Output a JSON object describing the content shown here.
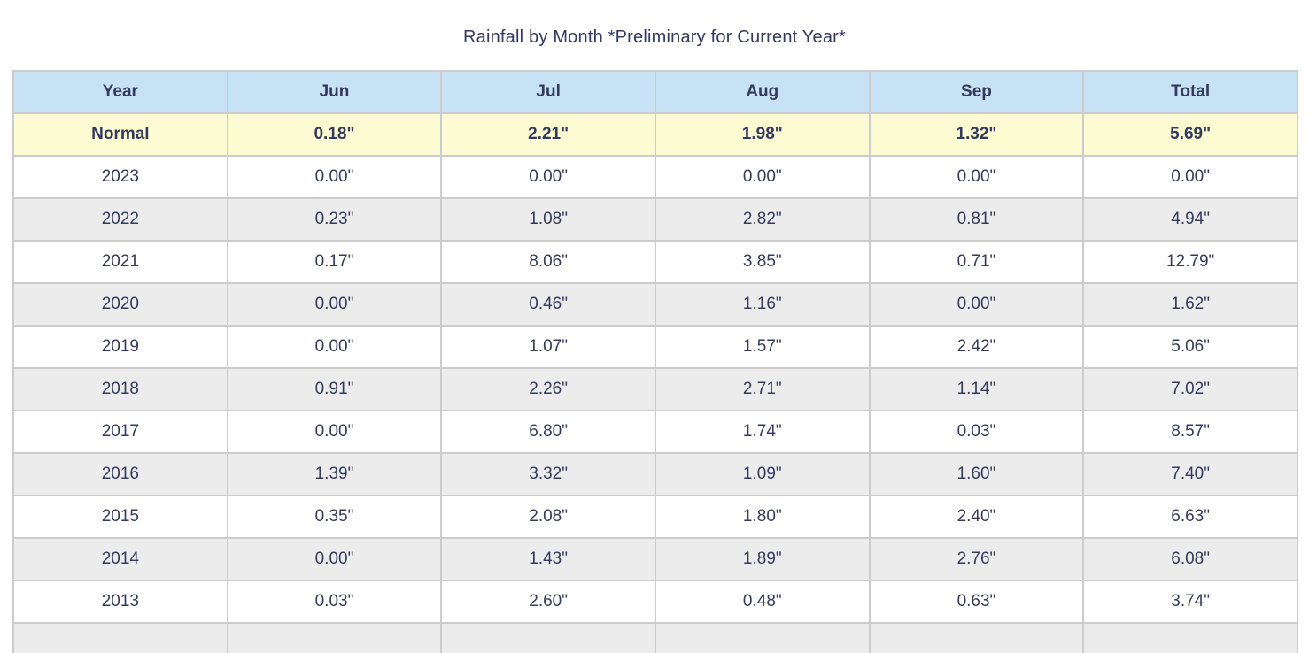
{
  "title": "Rainfall by Month *Preliminary for Current Year*",
  "colors": {
    "header_bg": "#c6e2f4",
    "normal_row_bg": "#fcfbd2",
    "stripe_row_bg": "#ececec",
    "white_row_bg": "#ffffff",
    "border": "#cccccc",
    "text": "#333a5d"
  },
  "table": {
    "columns": [
      "Year",
      "Jun",
      "Jul",
      "Aug",
      "Sep",
      "Total"
    ],
    "rows": [
      {
        "kind": "normal",
        "cells": [
          "Normal",
          "0.18\"",
          "2.21\"",
          "1.98\"",
          "1.32\"",
          "5.69\""
        ]
      },
      {
        "kind": "year",
        "cells": [
          "2023",
          "0.00\"",
          "0.00\"",
          "0.00\"",
          "0.00\"",
          "0.00\""
        ]
      },
      {
        "kind": "year",
        "cells": [
          "2022",
          "0.23\"",
          "1.08\"",
          "2.82\"",
          "0.81\"",
          "4.94\""
        ]
      },
      {
        "kind": "year",
        "cells": [
          "2021",
          "0.17\"",
          "8.06\"",
          "3.85\"",
          "0.71\"",
          "12.79\""
        ]
      },
      {
        "kind": "year",
        "cells": [
          "2020",
          "0.00\"",
          "0.46\"",
          "1.16\"",
          "0.00\"",
          "1.62\""
        ]
      },
      {
        "kind": "year",
        "cells": [
          "2019",
          "0.00\"",
          "1.07\"",
          "1.57\"",
          "2.42\"",
          "5.06\""
        ]
      },
      {
        "kind": "year",
        "cells": [
          "2018",
          "0.91\"",
          "2.26\"",
          "2.71\"",
          "1.14\"",
          "7.02\""
        ]
      },
      {
        "kind": "year",
        "cells": [
          "2017",
          "0.00\"",
          "6.80\"",
          "1.74\"",
          "0.03\"",
          "8.57\""
        ]
      },
      {
        "kind": "year",
        "cells": [
          "2016",
          "1.39\"",
          "3.32\"",
          "1.09\"",
          "1.60\"",
          "7.40\""
        ]
      },
      {
        "kind": "year",
        "cells": [
          "2015",
          "0.35\"",
          "2.08\"",
          "1.80\"",
          "2.40\"",
          "6.63\""
        ]
      },
      {
        "kind": "year",
        "cells": [
          "2014",
          "0.00\"",
          "1.43\"",
          "1.89\"",
          "2.76\"",
          "6.08\""
        ]
      },
      {
        "kind": "year",
        "cells": [
          "2013",
          "0.03\"",
          "2.60\"",
          "0.48\"",
          "0.63\"",
          "3.74\""
        ]
      },
      {
        "kind": "partial",
        "cells": [
          "",
          "",
          "",
          "",
          "",
          ""
        ]
      }
    ]
  },
  "chart_data": {
    "type": "table",
    "title": "Rainfall by Month *Preliminary for Current Year*",
    "units": "inches",
    "columns": [
      "Year",
      "Jun",
      "Jul",
      "Aug",
      "Sep",
      "Total"
    ],
    "normal": {
      "Jun": 0.18,
      "Jul": 2.21,
      "Aug": 1.98,
      "Sep": 1.32,
      "Total": 5.69
    },
    "rows": [
      {
        "year": 2023,
        "jun": 0.0,
        "jul": 0.0,
        "aug": 0.0,
        "sep": 0.0,
        "total": 0.0
      },
      {
        "year": 2022,
        "jun": 0.23,
        "jul": 1.08,
        "aug": 2.82,
        "sep": 0.81,
        "total": 4.94
      },
      {
        "year": 2021,
        "jun": 0.17,
        "jul": 8.06,
        "aug": 3.85,
        "sep": 0.71,
        "total": 12.79
      },
      {
        "year": 2020,
        "jun": 0.0,
        "jul": 0.46,
        "aug": 1.16,
        "sep": 0.0,
        "total": 1.62
      },
      {
        "year": 2019,
        "jun": 0.0,
        "jul": 1.07,
        "aug": 1.57,
        "sep": 2.42,
        "total": 5.06
      },
      {
        "year": 2018,
        "jun": 0.91,
        "jul": 2.26,
        "aug": 2.71,
        "sep": 1.14,
        "total": 7.02
      },
      {
        "year": 2017,
        "jun": 0.0,
        "jul": 6.8,
        "aug": 1.74,
        "sep": 0.03,
        "total": 8.57
      },
      {
        "year": 2016,
        "jun": 1.39,
        "jul": 3.32,
        "aug": 1.09,
        "sep": 1.6,
        "total": 7.4
      },
      {
        "year": 2015,
        "jun": 0.35,
        "jul": 2.08,
        "aug": 1.8,
        "sep": 2.4,
        "total": 6.63
      },
      {
        "year": 2014,
        "jun": 0.0,
        "jul": 1.43,
        "aug": 1.89,
        "sep": 2.76,
        "total": 6.08
      },
      {
        "year": 2013,
        "jun": 0.03,
        "jul": 2.6,
        "aug": 0.48,
        "sep": 0.63,
        "total": 3.74
      }
    ]
  }
}
